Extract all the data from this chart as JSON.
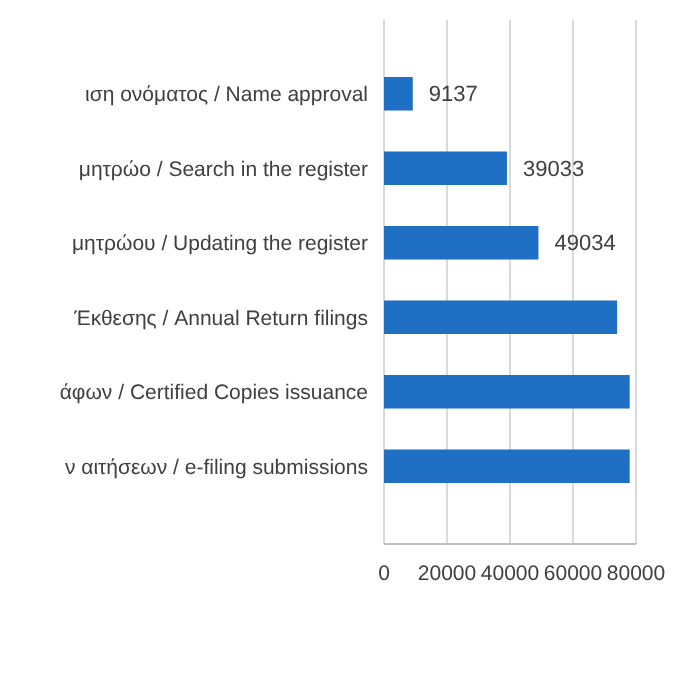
{
  "chart_data": {
    "type": "bar",
    "orientation": "horizontal",
    "categories": [
      "ιση ονόματος / Name approval",
      "μητρώο / Search in the register",
      "μητρώου / Updating the register",
      "Έκθεσης / Annual Return filings",
      "άφων / Certified Copies issuance",
      "ν αιτήσεων / e-filing submissions"
    ],
    "values": [
      9137,
      39033,
      49034,
      74000,
      78000,
      78000
    ],
    "value_labels": [
      "9137",
      "39033",
      "49034",
      null,
      null,
      null
    ],
    "color": "#1f6fc5",
    "xlim": [
      0,
      80000
    ],
    "xticks": [
      0,
      20000,
      40000,
      60000,
      80000
    ],
    "grid": "x"
  }
}
